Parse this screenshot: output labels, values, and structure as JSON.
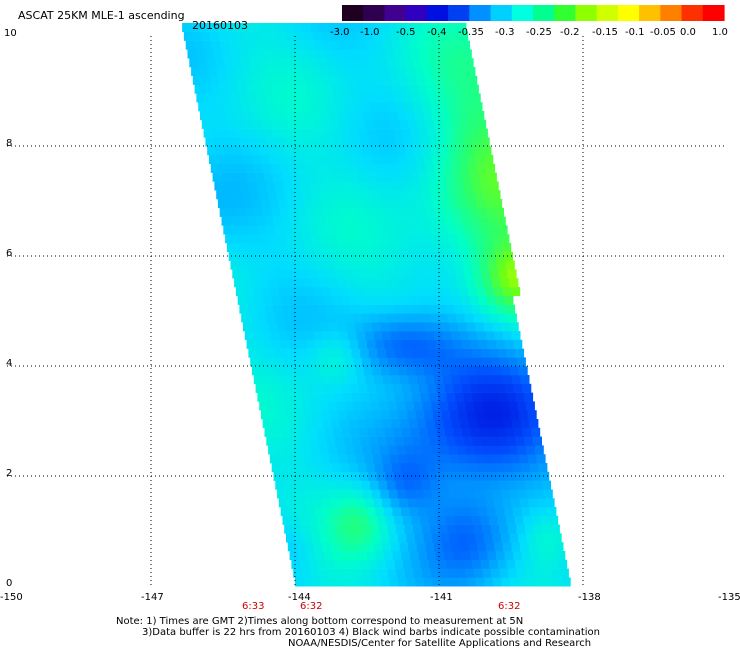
{
  "header": {
    "title": "ASCAT 25KM MLE-1 ascending",
    "date": "20160103"
  },
  "colorbar": {
    "labels": [
      "-3.0",
      "-1.0",
      "-0.5",
      "-0.4",
      "-0.35",
      "-0.3",
      "-0.25",
      "-0.2",
      "-0.15",
      "-0.1",
      "-0.05",
      "0.0",
      "1.0"
    ],
    "colors": [
      "#200020",
      "#300050",
      "#400090",
      "#3000c0",
      "#0010e0",
      "#0040f0",
      "#0090ff",
      "#00d0ff",
      "#00ffe0",
      "#00ff90",
      "#30ff30",
      "#90ff00",
      "#d0ff00",
      "#ffff00",
      "#ffc000",
      "#ff8000",
      "#ff3000",
      "#ff0000"
    ]
  },
  "map": {
    "x_ticks": [
      "-150",
      "-147",
      "-144",
      "-141",
      "-138",
      "-135"
    ],
    "y_ticks": [
      "0",
      "2",
      "4",
      "6",
      "8",
      "10"
    ],
    "times": [
      "6:33",
      "6:32",
      "6:32"
    ]
  },
  "footer": {
    "line1": "Note: 1) Times are GMT 2)Times along bottom correspond to measurement at 5N",
    "line2": "3)Data buffer is 22 hrs from 20160103 4) Black wind barbs indicate possible contamination",
    "line3": "NOAA/NESDIS/Center for Satellite Applications and Research"
  },
  "chart_data": {
    "type": "heatmap",
    "x_range": [
      -150,
      -135
    ],
    "y_range": [
      0,
      10
    ],
    "color_range": [
      -3.0,
      1.0
    ],
    "swath": "ascending pass, tilted strip from about -147.5 to -139 longitude",
    "regions": [
      {
        "name": "western swath",
        "value_range": [
          -0.3,
          -0.25
        ]
      },
      {
        "name": "eastern edge north of 5N",
        "value_range": [
          -0.2,
          -0.1
        ]
      },
      {
        "name": "central-east 0-5N",
        "value_range": [
          -0.4,
          -0.35
        ]
      }
    ]
  }
}
